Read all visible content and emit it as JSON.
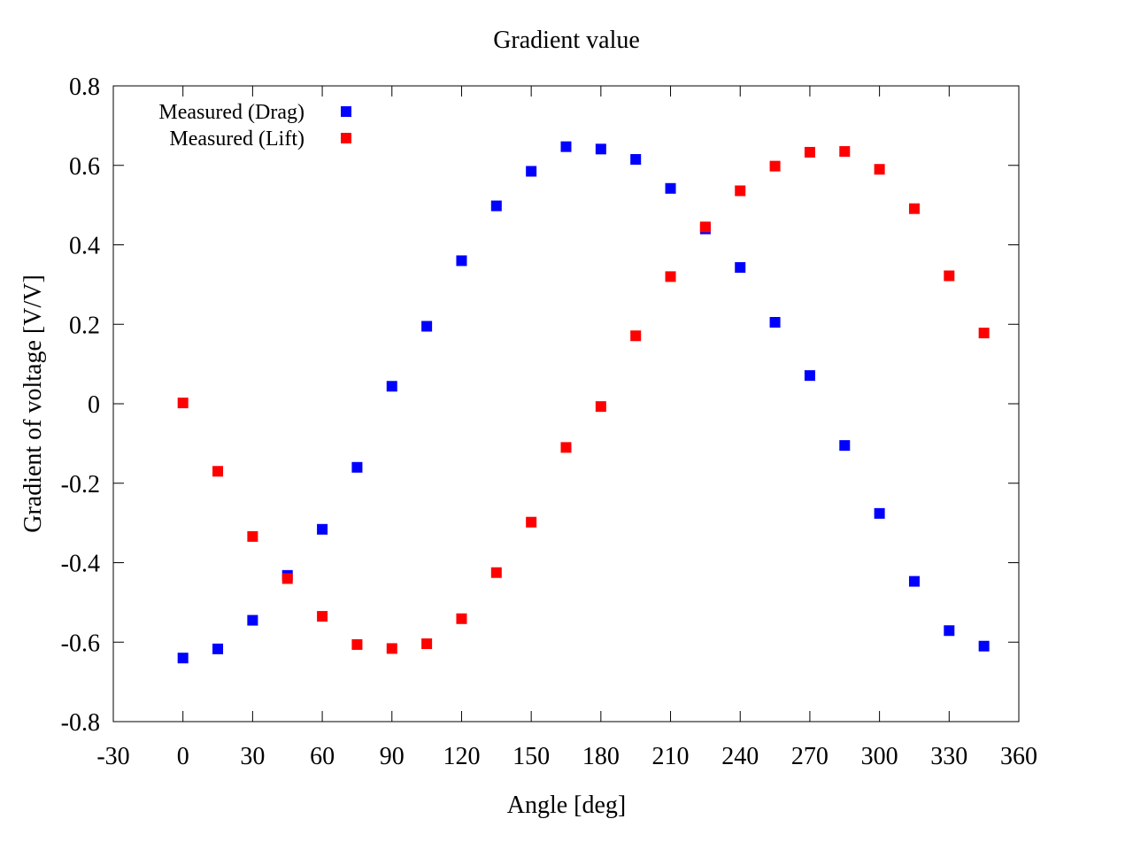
{
  "chart_data": {
    "type": "scatter",
    "title": "Gradient value",
    "xlabel": "Angle [deg]",
    "ylabel": "Gradient of voltage [V/V]",
    "xlim": [
      -30,
      360
    ],
    "ylim": [
      -0.8,
      0.8
    ],
    "xticks": [
      -30,
      0,
      30,
      60,
      90,
      120,
      150,
      180,
      210,
      240,
      270,
      300,
      330,
      360
    ],
    "xtick_labels": [
      "-30",
      "0",
      "30",
      "60",
      "90",
      "120",
      "150",
      "180",
      "210",
      "240",
      "270",
      "300",
      "330",
      "360"
    ],
    "yticks": [
      -0.8,
      -0.6,
      -0.4,
      -0.2,
      0,
      0.2,
      0.4,
      0.6,
      0.8
    ],
    "ytick_labels": [
      "-0.8",
      "-0.6",
      "-0.4",
      "-0.2",
      "0",
      "0.2",
      "0.4",
      "0.6",
      "0.8"
    ],
    "grid": false,
    "legend_position": "top-left",
    "x": [
      0,
      15,
      30,
      45,
      60,
      75,
      90,
      105,
      120,
      135,
      150,
      165,
      180,
      195,
      210,
      225,
      240,
      255,
      270,
      285,
      300,
      315,
      330,
      345
    ],
    "series": [
      {
        "name": "Measured (Drag)",
        "color": "#0000ff",
        "marker": "square",
        "values": [
          -0.64,
          -0.617,
          -0.545,
          -0.432,
          -0.316,
          -0.16,
          0.044,
          0.195,
          0.36,
          0.498,
          0.585,
          0.647,
          0.641,
          0.615,
          0.542,
          0.44,
          0.343,
          0.205,
          0.071,
          -0.105,
          -0.276,
          -0.447,
          -0.571,
          -0.61
        ]
      },
      {
        "name": "Measured (Lift)",
        "color": "#ff0000",
        "marker": "square",
        "values": [
          0.002,
          -0.17,
          -0.334,
          -0.44,
          -0.535,
          -0.606,
          -0.616,
          -0.604,
          -0.541,
          -0.425,
          -0.298,
          -0.11,
          -0.007,
          0.171,
          0.32,
          0.445,
          0.536,
          0.598,
          0.633,
          0.635,
          0.59,
          0.491,
          0.322,
          0.178
        ]
      }
    ]
  }
}
